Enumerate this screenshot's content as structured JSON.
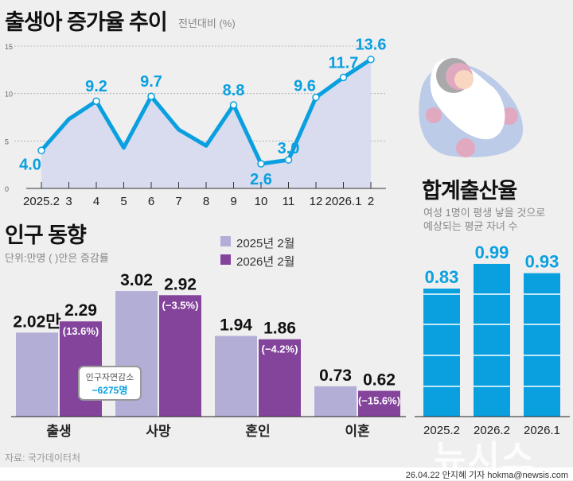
{
  "chart_data": [
    {
      "type": "line",
      "title": "출생아 증가율 추이",
      "subtitle": "전년대비  (%)",
      "categories": [
        "2025.2",
        "3",
        "4",
        "5",
        "6",
        "7",
        "8",
        "9",
        "10",
        "11",
        "12",
        "2026.1",
        "2"
      ],
      "values": [
        4.0,
        7.3,
        9.2,
        4.3,
        9.7,
        6.2,
        4.5,
        8.8,
        2.6,
        3.0,
        9.6,
        11.7,
        13.6
      ],
      "labels": [
        "4.0",
        null,
        "9.2",
        null,
        "9.7",
        null,
        null,
        "8.8",
        "2.6",
        "3.0",
        "9.6",
        "11.7",
        "13.6"
      ],
      "ylim": [
        0,
        15
      ],
      "yticks": [
        "0",
        "5",
        "10",
        "15"
      ],
      "grid": true,
      "color": "#0aa0e0",
      "area_color": "#d8dcee"
    },
    {
      "type": "bar",
      "title": "인구 동향",
      "subtitle": "단위:만명 ( )안은  증감률",
      "categories": [
        "출생",
        "사망",
        "혼인",
        "이혼"
      ],
      "series": [
        {
          "name": "2025년 2월",
          "values": [
            2.02,
            3.02,
            1.94,
            0.73
          ],
          "labels": [
            "2.02만",
            "3.02",
            "1.94",
            "0.73"
          ],
          "color": "#b3aed6"
        },
        {
          "name": "2026년 2월",
          "values": [
            2.29,
            2.92,
            1.86,
            0.62
          ],
          "labels": [
            "2.29",
            "2.92",
            "1.86",
            "0.62"
          ],
          "changes": [
            "(13.6%)",
            "(−3.5%)",
            "(−4.2%)",
            "(−15.6%)"
          ],
          "color": "#84449c"
        }
      ],
      "legend": "top-right",
      "callout": {
        "label": "인구자연감소",
        "value": "−6275명"
      }
    },
    {
      "type": "bar",
      "title": "합계출산율",
      "subtitle_lines": [
        "여성 1명이 평생 낳을 것으로",
        "예상되는 평균 자녀 수"
      ],
      "categories": [
        "2025.2",
        "2026.2",
        "2026.1"
      ],
      "values": [
        0.83,
        0.99,
        0.93
      ],
      "labels": [
        "0.83",
        "0.99",
        "0.93"
      ],
      "color": "#0aa0e0"
    }
  ],
  "source": "자료: 국가데이터처",
  "watermark": "뉴시스",
  "credit": "26.04.22 안지혜 기자 hokma@newsis.com"
}
